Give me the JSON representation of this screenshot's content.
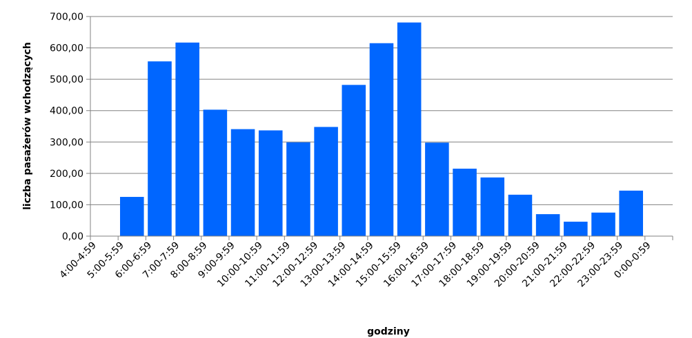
{
  "chart_data": {
    "type": "bar",
    "title": "",
    "xlabel": "godziny",
    "ylabel": "liczba pasażerów wchodzących",
    "categories": [
      "4:00-4:59",
      "5:00-5:59",
      "6:00-6:59",
      "7:00-7:59",
      "8:00-8:59",
      "9:00-9:59",
      "10:00-10:59",
      "11:00-11:59",
      "12:00-12:59",
      "13:00-13:59",
      "14:00-14:59",
      "15:00-15:59",
      "16:00-16:59",
      "17:00-17:59",
      "18:00-18:59",
      "19:00-19:59",
      "20:00-20:59",
      "21:00-21:59",
      "22:00-22:59",
      "23:00-23:59",
      "0:00-0:59"
    ],
    "values": [
      null,
      125,
      557,
      617,
      403,
      341,
      337,
      299,
      348,
      482,
      615,
      681,
      298,
      215,
      187,
      132,
      70,
      46,
      75,
      145,
      null
    ],
    "ylim": [
      0,
      700
    ],
    "yticks": [
      "0,00",
      "100,00",
      "200,00",
      "300,00",
      "400,00",
      "500,00",
      "600,00",
      "700,00"
    ],
    "grid": true,
    "bar_color": "#0066ff",
    "grid_color": "#808080",
    "axis_color": "#808080"
  }
}
